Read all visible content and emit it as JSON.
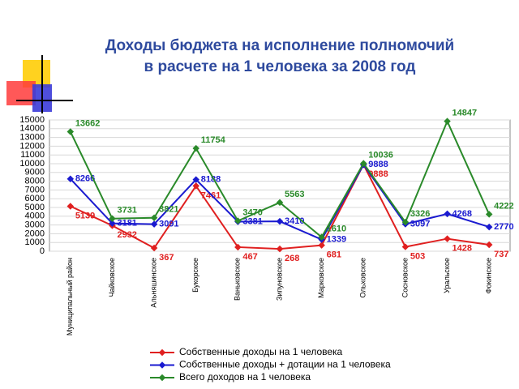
{
  "chart_data": {
    "type": "line",
    "title": [
      "Доходы бюджета на исполнение полномочий",
      "в расчете на 1 человека за 2008 год"
    ],
    "categories": [
      "Муниципальный район",
      "Чайковское",
      "Альняшинское",
      "Букорское",
      "Ваньковское",
      "Зипуновское",
      "Марковское",
      "Ольховское",
      "Сосновское",
      "Уральское",
      "Фокинское"
    ],
    "series": [
      {
        "name": "Собственные доходы на 1 человека",
        "color": "#e02020",
        "values": [
          5139,
          2932,
          367,
          7461,
          467,
          268,
          681,
          9888,
          503,
          1428,
          737
        ]
      },
      {
        "name": "Собственные доходы + дотации на 1 человека",
        "color": "#1a1ad0",
        "values": [
          8266,
          3181,
          3091,
          8188,
          3381,
          3410,
          1339,
          9888,
          3097,
          4268,
          2770
        ]
      },
      {
        "name": "Всего доходов на 1 человека",
        "color": "#2a8a2a",
        "values": [
          13662,
          3731,
          3821,
          11754,
          3470,
          5563,
          1610,
          10036,
          3326,
          14847,
          4222
        ]
      }
    ],
    "ylim": [
      0,
      15000
    ],
    "yticks": [
      0,
      1000,
      2000,
      3000,
      4000,
      5000,
      6000,
      7000,
      8000,
      9000,
      10000,
      11000,
      12000,
      13000,
      14000,
      15000
    ],
    "grid": true
  }
}
